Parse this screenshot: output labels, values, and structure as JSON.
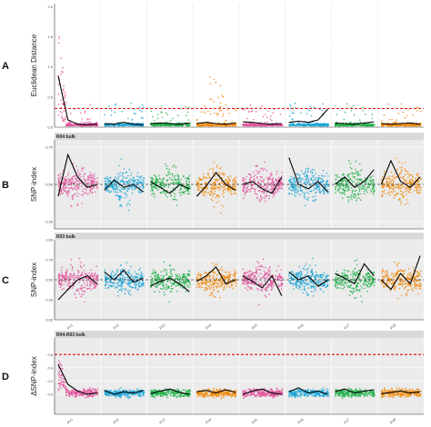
{
  "colors": {
    "chromosomes": [
      "#e0529c",
      "#1aa6d6",
      "#22b24c",
      "#f08b0c",
      "#e0529c",
      "#1aa6d6",
      "#22b24c",
      "#f08b0c"
    ],
    "threshold": "#e0201a",
    "smooth": "#000000",
    "panel_bg": "#ebebeb",
    "grid": "#ffffff"
  },
  "chart_data": [
    {
      "type": "scatter",
      "panel_label": "A",
      "title": "",
      "ylabel": "Euclidean Distance",
      "ylim": [
        0,
        2.05
      ],
      "yticks": [
        "0.0",
        "0.5",
        "1.0",
        "1.5",
        "2.0"
      ],
      "ytick_values": [
        0,
        0.5,
        1.0,
        1.5,
        2.0
      ],
      "threshold": 0.31,
      "chromosomes": [
        "Pv01",
        "Pv02",
        "Pv03",
        "Pv04",
        "Pv05",
        "Pv06",
        "Pv07",
        "Pv08"
      ],
      "x_tick_labels": [
        "",
        "",
        "",
        "",
        "",
        "",
        "",
        ""
      ],
      "grid": false,
      "smooth_y": [
        0.85,
        0.12,
        0.05,
        0.04,
        0.05,
        0.06,
        0.05,
        0.08,
        0.05,
        0.04,
        0.06,
        0.07,
        0.06,
        0.05,
        0.07,
        0.06,
        0.08,
        0.06,
        0.05,
        0.07,
        0.09,
        0.08,
        0.06,
        0.05,
        0.06,
        0.08,
        0.1,
        0.08,
        0.12,
        0.3,
        0.07,
        0.06,
        0.05,
        0.07,
        0.09,
        0.06,
        0.05,
        0.06,
        0.07,
        0.05
      ]
    },
    {
      "type": "scatter",
      "panel_label": "B",
      "title": "R04 bulk",
      "ylabel": "SNP-index",
      "ylim": [
        0.2,
        0.8
      ],
      "yticks": [
        "0.25",
        "0.50",
        "0.75"
      ],
      "ytick_values": [
        0.25,
        0.5,
        0.75
      ],
      "threshold": 0.5,
      "chromosomes": [
        "Pv01",
        "Pv02",
        "Pv03",
        "Pv04",
        "Pv05",
        "Pv06",
        "Pv07",
        "Pv08"
      ],
      "x_tick_labels": [
        "Pv1",
        "Pv2",
        "Pv3",
        "Pv4",
        "Pv5",
        "Pv6",
        "Pv7",
        "Pv8"
      ],
      "grid": true,
      "smooth_y": [
        0.42,
        0.7,
        0.55,
        0.48,
        0.5,
        0.46,
        0.53,
        0.48,
        0.5,
        0.45,
        0.52,
        0.48,
        0.44,
        0.5,
        0.47,
        0.42,
        0.49,
        0.58,
        0.5,
        0.46,
        0.5,
        0.52,
        0.47,
        0.44,
        0.55,
        0.68,
        0.5,
        0.47,
        0.52,
        0.45,
        0.5,
        0.55,
        0.48,
        0.52,
        0.6,
        0.5,
        0.66,
        0.52,
        0.48,
        0.55
      ]
    },
    {
      "type": "scatter",
      "panel_label": "C",
      "title": "R03 bulk",
      "ylabel": "SNP-index",
      "ylim": [
        0,
        1.0
      ],
      "yticks": [
        "0.00",
        "0.25",
        "0.50",
        "0.75",
        "1.00"
      ],
      "ytick_values": [
        0,
        0.25,
        0.5,
        0.75,
        1.0
      ],
      "threshold": 0.5,
      "chromosomes": [
        "Pv01",
        "Pv02",
        "Pv03",
        "Pv04",
        "Pv05",
        "Pv06",
        "Pv07",
        "Pv08"
      ],
      "x_tick_labels": [
        "Pv1",
        "Pv2",
        "Pv3",
        "Pv4",
        "Pv5",
        "Pv6",
        "Pv7",
        "Pv8"
      ],
      "grid": true,
      "smooth_y": [
        0.25,
        0.38,
        0.5,
        0.55,
        0.45,
        0.6,
        0.5,
        0.62,
        0.47,
        0.52,
        0.42,
        0.48,
        0.52,
        0.45,
        0.35,
        0.48,
        0.55,
        0.66,
        0.45,
        0.5,
        0.55,
        0.48,
        0.4,
        0.55,
        0.3,
        0.6,
        0.5,
        0.55,
        0.42,
        0.5,
        0.58,
        0.52,
        0.45,
        0.7,
        0.55,
        0.5,
        0.38,
        0.58,
        0.45,
        0.8
      ]
    },
    {
      "type": "scatter",
      "panel_label": "D",
      "title": "R04-R03 bulk",
      "ylabel": "ΔSNP-index",
      "ylim": [
        -0.3,
        0.85
      ],
      "yticks": [
        "0.0",
        "0.2",
        "0.4",
        "0.6"
      ],
      "ytick_values": [
        0,
        0.2,
        0.4,
        0.6
      ],
      "threshold": 0.6,
      "chromosomes": [
        "Pv01",
        "Pv02",
        "Pv03",
        "Pv04",
        "Pv05",
        "Pv06",
        "Pv07",
        "Pv08"
      ],
      "x_tick_labels": [
        "Pv1",
        "Pv2",
        "Pv3",
        "Pv4",
        "Pv5",
        "Pv6",
        "Pv7",
        "Pv8"
      ],
      "grid": true,
      "smooth_y": [
        0.45,
        0.15,
        0.05,
        0.0,
        0.02,
        0.06,
        0.0,
        0.04,
        0.02,
        0.06,
        0.01,
        0.05,
        0.08,
        0.03,
        0.0,
        0.04,
        0.06,
        0.02,
        0.07,
        0.03,
        0.0,
        0.05,
        0.08,
        0.02,
        0.0,
        0.04,
        0.1,
        0.02,
        0.05,
        0.0,
        0.04,
        0.08,
        0.02,
        0.05,
        0.07,
        0.01,
        0.03,
        0.05,
        0.02,
        0.04
      ]
    }
  ]
}
